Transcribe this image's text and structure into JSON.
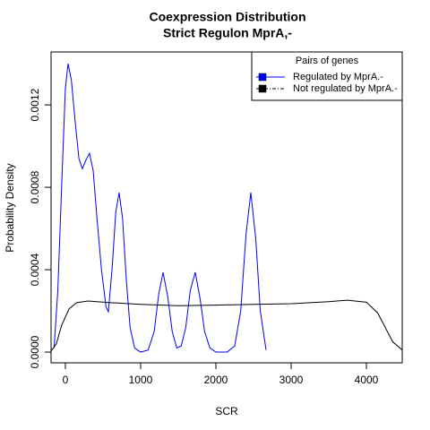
{
  "chart_data": {
    "type": "line",
    "title": "Coexpression Distribution",
    "subtitle": "Strict Regulon MprA,-",
    "x_label": "SCR",
    "y_label": "Probability Density",
    "xlim": [
      -190,
      4476
    ],
    "ylim": [
      -5.2e-05,
      0.001457
    ],
    "xticks": [
      0,
      1000,
      2000,
      3000,
      4000
    ],
    "yticks": [
      {
        "value": 0,
        "label": "0.0000"
      },
      {
        "value": 0.0004,
        "label": "0.0004"
      },
      {
        "value": 0.0008,
        "label": "0.0008"
      },
      {
        "value": 0.0012,
        "label": "0.0012"
      }
    ],
    "legend_title": "Pairs of genes",
    "legend_position": "top-right",
    "series": [
      {
        "name": "Regulated by  MprA.-",
        "color": "#0000ff",
        "x": [
          -150,
          -100,
          -50,
          0,
          36,
          80,
          130,
          180,
          226,
          270,
          321,
          370,
          420,
          480,
          540,
          571,
          620,
          670,
          714,
          760,
          810,
          860,
          920,
          1000,
          1100,
          1180,
          1240,
          1298,
          1360,
          1420,
          1480,
          1540,
          1600,
          1660,
          1726,
          1790,
          1850,
          1920,
          2000,
          2150,
          2250,
          2330,
          2400,
          2464,
          2530,
          2590,
          2667
        ],
        "values": [
          2e-05,
          0.0003,
          0.0008,
          0.00128,
          0.0014,
          0.00132,
          0.00112,
          0.00094,
          0.00089,
          0.00093,
          0.000965,
          0.00088,
          0.00065,
          0.0004,
          0.00022,
          0.000196,
          0.0004,
          0.00068,
          0.000774,
          0.00065,
          0.00035,
          0.00012,
          2e-05,
          0,
          1e-05,
          0.0001,
          0.00028,
          0.000387,
          0.00027,
          0.0001,
          2e-05,
          3e-05,
          0.00012,
          0.0003,
          0.000387,
          0.00026,
          0.0001,
          2e-05,
          0,
          0,
          3e-05,
          0.0002,
          0.00057,
          0.000774,
          0.00055,
          0.0002,
          1e-05
        ]
      },
      {
        "name": "Not regulated by  MprA.-",
        "color": "#000000",
        "x": [
          -190,
          -120,
          -50,
          50,
          150,
          300,
          600,
          1000,
          1500,
          2000,
          2500,
          3000,
          3500,
          3750,
          4000,
          4150,
          4250,
          4350,
          4476
        ],
        "values": [
          5e-06,
          4e-05,
          0.00013,
          0.00021,
          0.00024,
          0.000248,
          0.00024,
          0.000232,
          0.000225,
          0.000228,
          0.000232,
          0.000235,
          0.000245,
          0.000252,
          0.000242,
          0.00019,
          0.00012,
          5e-05,
          1e-05
        ]
      }
    ]
  }
}
